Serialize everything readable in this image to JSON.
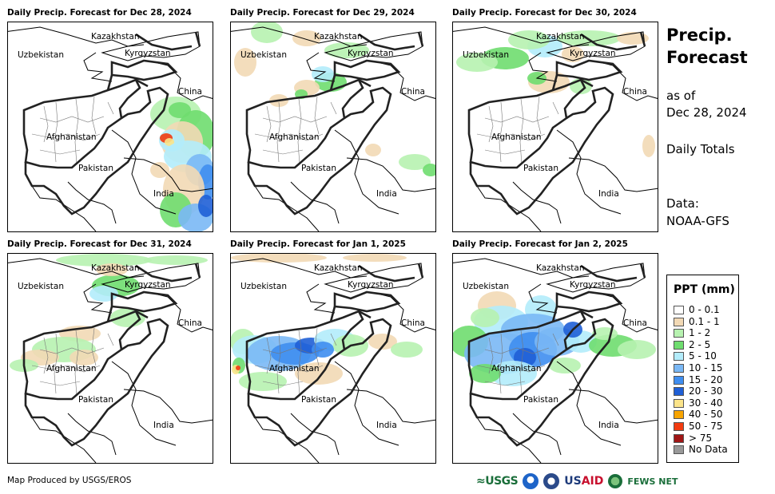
{
  "panels": [
    {
      "title": "Daily Precip. Forecast for Dec 28, 2024",
      "pattern": "d28"
    },
    {
      "title": "Daily Precip. Forecast for Dec 29, 2024",
      "pattern": "d29"
    },
    {
      "title": "Daily Precip. Forecast for Dec 30, 2024",
      "pattern": "d30"
    },
    {
      "title": "Daily Precip. Forecast for Dec 31, 2024",
      "pattern": "d31"
    },
    {
      "title": "Daily Precip. Forecast for Jan 1, 2025",
      "pattern": "j01"
    },
    {
      "title": "Daily Precip. Forecast for Jan 2, 2025",
      "pattern": "j02"
    }
  ],
  "map_labels": {
    "kazakhstan": "Kazakhstan",
    "uzbekistan": "Uzbekistan",
    "kyrgyzstan": "Kyrgyzstan",
    "china": "China",
    "afghanistan": "Afghanistan",
    "pakistan": "Pakistan",
    "india": "India"
  },
  "sidebar": {
    "title_line1": "Precip.",
    "title_line2": "Forecast",
    "as_of": "as of",
    "date": "Dec 28, 2024",
    "daily_totals": "Daily Totals",
    "data_label": "Data:",
    "data_source": "NOAA-GFS"
  },
  "legend": {
    "title": "PPT (mm)",
    "items": [
      {
        "label": "0 - 0.1",
        "color": "#ffffff"
      },
      {
        "label": "0.1 - 1",
        "color": "#f2d9b5"
      },
      {
        "label": "1 - 2",
        "color": "#b7f2b0"
      },
      {
        "label": "2 - 5",
        "color": "#6fdd6f"
      },
      {
        "label": "5 - 10",
        "color": "#b3ecfb"
      },
      {
        "label": "10 - 15",
        "color": "#7ab8f5"
      },
      {
        "label": "15 - 20",
        "color": "#3f8ef0"
      },
      {
        "label": "20 - 30",
        "color": "#1f5fd6"
      },
      {
        "label": "30 - 40",
        "color": "#fbe48a"
      },
      {
        "label": "40 - 50",
        "color": "#f7a400"
      },
      {
        "label": "50 - 75",
        "color": "#f23b10"
      },
      {
        "label": "> 75",
        "color": "#a01616"
      },
      {
        "label": "No Data",
        "color": "#999999"
      }
    ]
  },
  "footer": {
    "credit": "Map Produced by USGS/EROS",
    "logos": {
      "usgs": "USGS",
      "usaid_us": "US",
      "usaid_aid": "AID",
      "fews": "FEWS NET"
    }
  }
}
